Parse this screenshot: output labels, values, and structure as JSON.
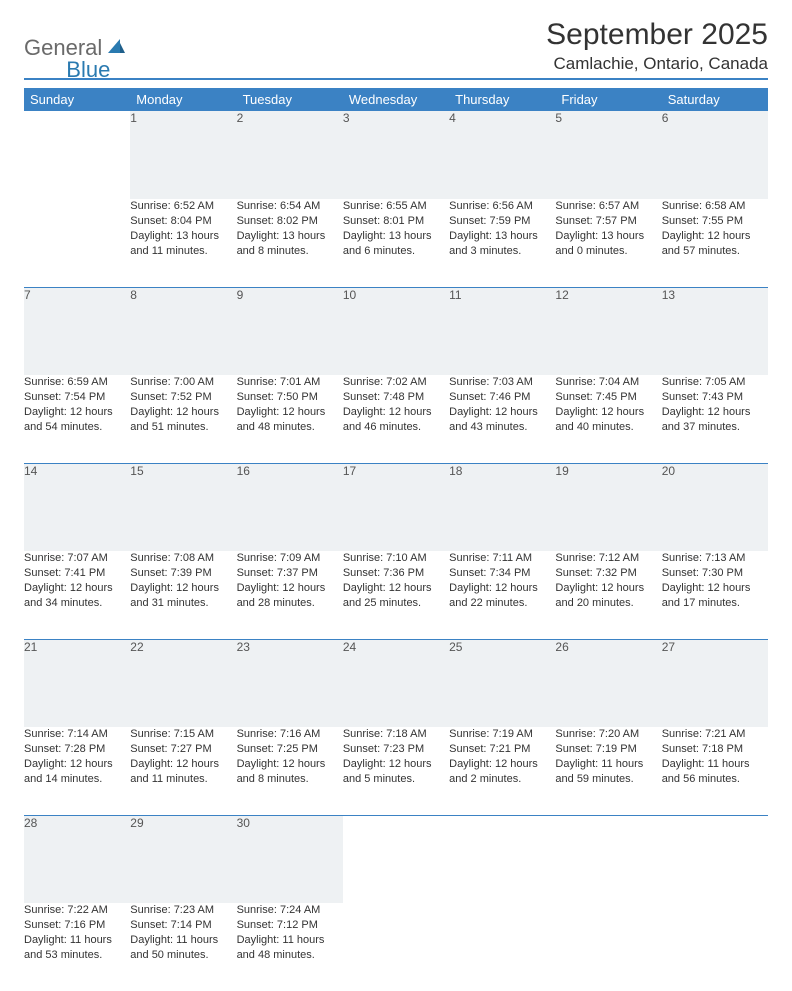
{
  "logo": {
    "part1": "General",
    "part2": "Blue"
  },
  "title": "September 2025",
  "location": "Camlachie, Ontario, Canada",
  "colors": {
    "header_bg": "#3b82c4",
    "header_text": "#ffffff",
    "daynum_bg": "#eef1f3",
    "daynum_text": "#555555",
    "body_text": "#333333",
    "rule": "#3b82c4",
    "logo_gray": "#6a6a6a",
    "logo_blue": "#2a7ab0"
  },
  "weekdays": [
    "Sunday",
    "Monday",
    "Tuesday",
    "Wednesday",
    "Thursday",
    "Friday",
    "Saturday"
  ],
  "weeks": [
    {
      "nums": [
        "",
        "1",
        "2",
        "3",
        "4",
        "5",
        "6"
      ],
      "cells": [
        "",
        "Sunrise: 6:52 AM\nSunset: 8:04 PM\nDaylight: 13 hours and 11 minutes.",
        "Sunrise: 6:54 AM\nSunset: 8:02 PM\nDaylight: 13 hours and 8 minutes.",
        "Sunrise: 6:55 AM\nSunset: 8:01 PM\nDaylight: 13 hours and 6 minutes.",
        "Sunrise: 6:56 AM\nSunset: 7:59 PM\nDaylight: 13 hours and 3 minutes.",
        "Sunrise: 6:57 AM\nSunset: 7:57 PM\nDaylight: 13 hours and 0 minutes.",
        "Sunrise: 6:58 AM\nSunset: 7:55 PM\nDaylight: 12 hours and 57 minutes."
      ]
    },
    {
      "nums": [
        "7",
        "8",
        "9",
        "10",
        "11",
        "12",
        "13"
      ],
      "cells": [
        "Sunrise: 6:59 AM\nSunset: 7:54 PM\nDaylight: 12 hours and 54 minutes.",
        "Sunrise: 7:00 AM\nSunset: 7:52 PM\nDaylight: 12 hours and 51 minutes.",
        "Sunrise: 7:01 AM\nSunset: 7:50 PM\nDaylight: 12 hours and 48 minutes.",
        "Sunrise: 7:02 AM\nSunset: 7:48 PM\nDaylight: 12 hours and 46 minutes.",
        "Sunrise: 7:03 AM\nSunset: 7:46 PM\nDaylight: 12 hours and 43 minutes.",
        "Sunrise: 7:04 AM\nSunset: 7:45 PM\nDaylight: 12 hours and 40 minutes.",
        "Sunrise: 7:05 AM\nSunset: 7:43 PM\nDaylight: 12 hours and 37 minutes."
      ]
    },
    {
      "nums": [
        "14",
        "15",
        "16",
        "17",
        "18",
        "19",
        "20"
      ],
      "cells": [
        "Sunrise: 7:07 AM\nSunset: 7:41 PM\nDaylight: 12 hours and 34 minutes.",
        "Sunrise: 7:08 AM\nSunset: 7:39 PM\nDaylight: 12 hours and 31 minutes.",
        "Sunrise: 7:09 AM\nSunset: 7:37 PM\nDaylight: 12 hours and 28 minutes.",
        "Sunrise: 7:10 AM\nSunset: 7:36 PM\nDaylight: 12 hours and 25 minutes.",
        "Sunrise: 7:11 AM\nSunset: 7:34 PM\nDaylight: 12 hours and 22 minutes.",
        "Sunrise: 7:12 AM\nSunset: 7:32 PM\nDaylight: 12 hours and 20 minutes.",
        "Sunrise: 7:13 AM\nSunset: 7:30 PM\nDaylight: 12 hours and 17 minutes."
      ]
    },
    {
      "nums": [
        "21",
        "22",
        "23",
        "24",
        "25",
        "26",
        "27"
      ],
      "cells": [
        "Sunrise: 7:14 AM\nSunset: 7:28 PM\nDaylight: 12 hours and 14 minutes.",
        "Sunrise: 7:15 AM\nSunset: 7:27 PM\nDaylight: 12 hours and 11 minutes.",
        "Sunrise: 7:16 AM\nSunset: 7:25 PM\nDaylight: 12 hours and 8 minutes.",
        "Sunrise: 7:18 AM\nSunset: 7:23 PM\nDaylight: 12 hours and 5 minutes.",
        "Sunrise: 7:19 AM\nSunset: 7:21 PM\nDaylight: 12 hours and 2 minutes.",
        "Sunrise: 7:20 AM\nSunset: 7:19 PM\nDaylight: 11 hours and 59 minutes.",
        "Sunrise: 7:21 AM\nSunset: 7:18 PM\nDaylight: 11 hours and 56 minutes."
      ]
    },
    {
      "nums": [
        "28",
        "29",
        "30",
        "",
        "",
        "",
        ""
      ],
      "cells": [
        "Sunrise: 7:22 AM\nSunset: 7:16 PM\nDaylight: 11 hours and 53 minutes.",
        "Sunrise: 7:23 AM\nSunset: 7:14 PM\nDaylight: 11 hours and 50 minutes.",
        "Sunrise: 7:24 AM\nSunset: 7:12 PM\nDaylight: 11 hours and 48 minutes.",
        "",
        "",
        "",
        ""
      ]
    }
  ]
}
